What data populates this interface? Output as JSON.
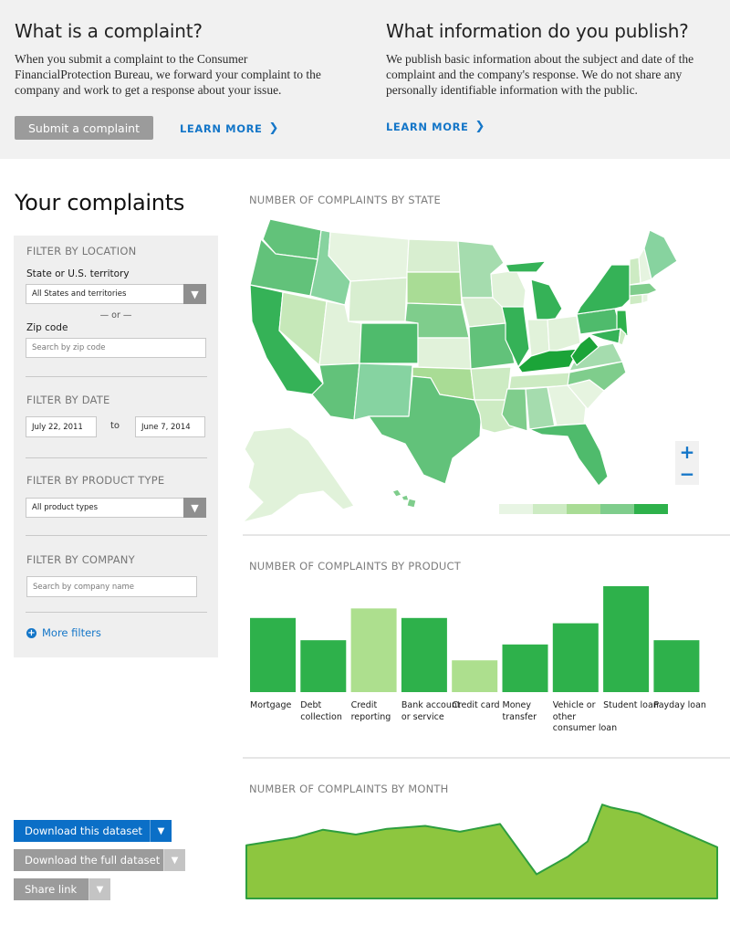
{
  "info": {
    "left": {
      "title": "What is a complaint?",
      "body": "When you submit a complaint to the Consumer FinancialProtection Bureau, we forward your complaint to the company and work to get a response about your issue.",
      "submit_label": "Submit a complaint",
      "learn_more": "LEARN MORE"
    },
    "right": {
      "title": "What information do you publish?",
      "body": "We publish basic information about the subject and date of the complaint and the company's response. We do not share any personally identifiable information with the public.",
      "learn_more": "LEARN MORE"
    }
  },
  "page_title": "Your complaints",
  "filters": {
    "location": {
      "heading": "FILTER BY LOCATION",
      "state_label": "State or U.S. territory",
      "state_value": "All States and territories",
      "or_text": "— or —",
      "zip_label": "Zip code",
      "zip_placeholder": "Search by zip code"
    },
    "date": {
      "heading": "FILTER BY DATE",
      "from": "July 22, 2011",
      "to_text": "to",
      "to": "June 7, 2014"
    },
    "product": {
      "heading": "FILTER BY PRODUCT TYPE",
      "value": "All product types"
    },
    "company": {
      "heading": "FILTER BY COMPANY",
      "placeholder": "Search by company name"
    },
    "more_filters": "More filters"
  },
  "downloads": {
    "dataset": "Download this dataset",
    "full": "Download the full dataset",
    "share": "Share link"
  },
  "sections": {
    "by_state": "NUMBER OF COMPLAINTS BY STATE",
    "by_product": "NUMBER OF COMPLAINTS BY PRODUCT",
    "by_month": "NUMBER OF COMPLAINTS BY MONTH"
  },
  "zoom": {
    "in": "+",
    "out": "−"
  },
  "colors": {
    "scale": [
      "#e8f5e4",
      "#cdebc3",
      "#a9dc95",
      "#7fcd8c",
      "#2eb14b"
    ],
    "bar_dark": "#2eb14b",
    "bar_light": "#addf8e",
    "area_fill": "#8dc63f",
    "area_line": "#2e9e3e",
    "link_blue": "#1476c8"
  },
  "icons": {
    "learn_more": "chevron-right-icon",
    "select": "chevron-down-icon",
    "more_filters": "plus-circle-icon"
  },
  "chart_data": [
    {
      "type": "bar",
      "title": "NUMBER OF COMPLAINTS BY PRODUCT",
      "categories": [
        "Mortgage",
        "Debt collection",
        "Credit reporting",
        "Bank account or service",
        "Credit card",
        "Money transfer",
        "Vehicle or other consumer loan",
        "Student loan",
        "Payday loan"
      ],
      "category_lines": [
        [
          "Mortgage"
        ],
        [
          "Debt",
          "collection"
        ],
        [
          "Credit",
          "reporting"
        ],
        [
          "Bank account",
          "or service"
        ],
        [
          "Credit card"
        ],
        [
          "Money",
          "transfer"
        ],
        [
          "Vehicle or",
          "other",
          "consumer loan"
        ],
        [
          "Student loan"
        ],
        [
          "Payday loan"
        ]
      ],
      "values": [
        70,
        49,
        79,
        70,
        30,
        45,
        65,
        100,
        49
      ],
      "highlight": [
        false,
        false,
        true,
        false,
        true,
        false,
        false,
        false,
        false
      ],
      "ylim": [
        0,
        100
      ]
    },
    {
      "type": "area",
      "title": "NUMBER OF COMPLAINTS BY MONTH",
      "values": [
        55,
        63,
        71,
        66,
        72,
        75,
        69,
        77,
        25,
        43,
        59,
        97,
        94,
        88,
        53
      ],
      "ylim": [
        0,
        100
      ]
    }
  ]
}
